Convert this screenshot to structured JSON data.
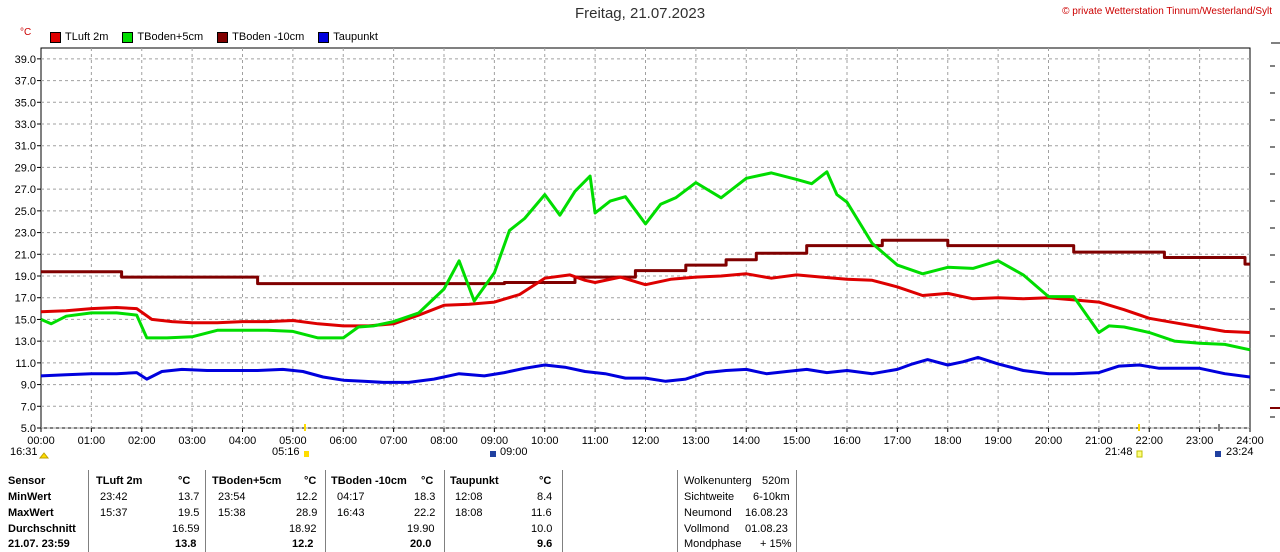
{
  "header": {
    "title": "Freitag, 21.07.2023",
    "copyright": "© private Wetterstation Tinnum/Westerland/Sylt",
    "unit": "°C"
  },
  "legend": [
    {
      "label": "TLuft 2m",
      "color": "#dd0000"
    },
    {
      "label": "TBoden+5cm",
      "color": "#00dd00"
    },
    {
      "label": "TBoden -10cm",
      "color": "#800000"
    },
    {
      "label": "Taupunkt",
      "color": "#0000dd"
    }
  ],
  "sun": {
    "sunrise_label": "16:31",
    "sunrise_time": "05:16",
    "noon_time": "09:00",
    "sunset_time": "21:48",
    "moon_time": "23:24"
  },
  "chart_data": {
    "type": "line",
    "title": "Freitag, 21.07.2023",
    "ylabel": "°C",
    "ylim": [
      5,
      40
    ],
    "yticks": [
      "5.0",
      "7.0",
      "9.0",
      "11.0",
      "13.0",
      "15.0",
      "17.0",
      "19.0",
      "21.0",
      "23.0",
      "25.0",
      "27.0",
      "29.0",
      "31.0",
      "33.0",
      "35.0",
      "37.0",
      "39.0"
    ],
    "xlim": [
      0,
      24
    ],
    "xticks": [
      "00:00",
      "01:00",
      "02:00",
      "03:00",
      "04:00",
      "05:00",
      "06:00",
      "07:00",
      "08:00",
      "09:00",
      "10:00",
      "11:00",
      "12:00",
      "13:00",
      "14:00",
      "15:00",
      "16:00",
      "17:00",
      "18:00",
      "19:00",
      "20:00",
      "21:00",
      "22:00",
      "23:00",
      "24:00"
    ],
    "grid": true,
    "series": [
      {
        "name": "TLuft 2m",
        "color": "#dd0000",
        "x": [
          0,
          0.5,
          1,
          1.5,
          1.9,
          2.2,
          2.6,
          3,
          3.5,
          4,
          4.5,
          5,
          5.5,
          6,
          6.5,
          7,
          7.5,
          8,
          8.5,
          9,
          9.5,
          10,
          10.5,
          10.8,
          11,
          11.5,
          12,
          12.5,
          13,
          13.5,
          14,
          14.5,
          15,
          15.5,
          16,
          16.5,
          17,
          17.5,
          18,
          18.5,
          19,
          19.5,
          20,
          20.5,
          21,
          21.5,
          22,
          22.5,
          23,
          23.5,
          24
        ],
        "y": [
          15.7,
          15.8,
          16.0,
          16.1,
          16.0,
          15.0,
          14.8,
          14.7,
          14.7,
          14.8,
          14.8,
          14.9,
          14.6,
          14.4,
          14.4,
          14.6,
          15.4,
          16.3,
          16.4,
          16.6,
          17.3,
          18.8,
          19.1,
          18.6,
          18.4,
          18.9,
          18.2,
          18.7,
          18.9,
          19.0,
          19.2,
          18.8,
          19.1,
          18.9,
          18.7,
          18.6,
          18.0,
          17.2,
          17.4,
          16.9,
          17.0,
          16.9,
          17.0,
          16.8,
          16.6,
          15.9,
          15.1,
          14.7,
          14.3,
          13.9,
          13.8
        ]
      },
      {
        "name": "TBoden+5cm",
        "color": "#00dd00",
        "x": [
          0,
          0.2,
          0.5,
          1,
          1.5,
          1.9,
          2.1,
          2.5,
          3,
          3.5,
          4,
          4.5,
          5,
          5.5,
          6,
          6.3,
          6.6,
          7,
          7.5,
          8,
          8.3,
          8.6,
          9,
          9.3,
          9.6,
          10,
          10.3,
          10.6,
          10.9,
          11,
          11.3,
          11.6,
          12,
          12.3,
          12.6,
          13,
          13.5,
          14,
          14.5,
          15,
          15.3,
          15.6,
          15.8,
          16,
          16.5,
          17,
          17.5,
          18,
          18.5,
          19,
          19.5,
          20,
          20.5,
          21,
          21.2,
          21.5,
          22,
          22.5,
          23,
          23.5,
          24
        ],
        "y": [
          15.0,
          14.6,
          15.3,
          15.6,
          15.6,
          15.4,
          13.3,
          13.3,
          13.4,
          14.0,
          14.0,
          14.0,
          13.9,
          13.3,
          13.3,
          14.3,
          14.4,
          14.8,
          15.6,
          17.8,
          20.4,
          16.7,
          19.3,
          23.2,
          24.3,
          26.5,
          24.6,
          26.8,
          28.2,
          24.8,
          25.9,
          26.3,
          23.8,
          25.6,
          26.2,
          27.6,
          26.2,
          28.0,
          28.5,
          27.9,
          27.5,
          28.6,
          26.5,
          25.8,
          22.0,
          20.0,
          19.2,
          19.8,
          19.7,
          20.4,
          19.1,
          17.1,
          17.1,
          13.8,
          14.4,
          14.3,
          13.8,
          13.0,
          12.8,
          12.7,
          12.2
        ]
      },
      {
        "name": "TBoden -10cm",
        "color": "#800000",
        "x": [
          0,
          1.6,
          1.6,
          4.3,
          4.3,
          9.2,
          9.2,
          10.6,
          10.6,
          11.8,
          11.8,
          12.8,
          12.8,
          13.6,
          13.6,
          14.2,
          14.2,
          15.2,
          15.2,
          16.7,
          16.7,
          18.0,
          18.0,
          20.5,
          20.5,
          22.3,
          22.3,
          23.9,
          23.9,
          24
        ],
        "y": [
          19.4,
          19.4,
          18.9,
          18.9,
          18.3,
          18.3,
          18.4,
          18.4,
          18.9,
          18.9,
          19.5,
          19.5,
          20.0,
          20.0,
          20.5,
          20.5,
          21.1,
          21.1,
          21.8,
          21.8,
          22.3,
          22.3,
          21.8,
          21.8,
          21.2,
          21.2,
          20.7,
          20.7,
          20.1,
          20.1
        ]
      },
      {
        "name": "Taupunkt",
        "color": "#0000dd",
        "x": [
          0,
          0.5,
          1,
          1.5,
          1.9,
          2.1,
          2.4,
          2.8,
          3.3,
          3.8,
          4.3,
          4.8,
          5.2,
          5.6,
          6,
          6.4,
          6.8,
          7.3,
          7.8,
          8.3,
          8.8,
          9.2,
          9.6,
          10,
          10.4,
          10.8,
          11.2,
          11.6,
          12,
          12.4,
          12.8,
          13.2,
          13.6,
          14,
          14.4,
          14.8,
          15.2,
          15.6,
          16,
          16.5,
          17,
          17.3,
          17.6,
          18,
          18.3,
          18.6,
          19,
          19.5,
          20,
          20.5,
          21,
          21.4,
          21.8,
          22.2,
          22.6,
          23,
          23.5,
          24
        ],
        "y": [
          9.8,
          9.9,
          10.0,
          10.0,
          10.1,
          9.5,
          10.2,
          10.4,
          10.3,
          10.3,
          10.3,
          10.4,
          10.2,
          9.7,
          9.4,
          9.3,
          9.2,
          9.2,
          9.5,
          10.0,
          9.8,
          10.1,
          10.5,
          10.8,
          10.6,
          10.2,
          10.0,
          9.6,
          9.6,
          9.3,
          9.5,
          10.1,
          10.3,
          10.4,
          10.0,
          10.2,
          10.4,
          10.1,
          10.3,
          10.0,
          10.4,
          10.9,
          11.3,
          10.8,
          11.1,
          11.5,
          10.9,
          10.3,
          10.0,
          10.0,
          10.1,
          10.7,
          10.8,
          10.5,
          10.5,
          10.5,
          10.0,
          9.7
        ]
      }
    ]
  },
  "stats": {
    "sensor_header": "Sensor",
    "row_labels": [
      "MinWert",
      "MaxWert",
      "Durchschnitt",
      "21.07. 23:59"
    ],
    "columns": [
      {
        "name": "TLuft 2m",
        "unit": "°C",
        "min_time": "23:42",
        "min": "13.7",
        "max_time": "15:37",
        "max": "19.5",
        "avg": "16.59",
        "last": "13.8"
      },
      {
        "name": "TBoden+5cm",
        "unit": "°C",
        "min_time": "23:54",
        "min": "12.2",
        "max_time": "15:38",
        "max": "28.9",
        "avg": "18.92",
        "last": "12.2"
      },
      {
        "name": "TBoden -10cm",
        "unit": "°C",
        "min_time": "04:17",
        "min": "18.3",
        "max_time": "16:43",
        "max": "22.2",
        "avg": "19.90",
        "last": "20.0"
      },
      {
        "name": "Taupunkt",
        "unit": "°C",
        "min_time": "12:08",
        "min": "8.4",
        "max_time": "18:08",
        "max": "11.6",
        "avg": "10.0",
        "last": "9.6"
      }
    ],
    "info": [
      {
        "label": "Wolkenunterg",
        "value": "520m"
      },
      {
        "label": "Sichtweite",
        "value": "6-10km"
      },
      {
        "label": "Neumond",
        "value": "16.08.23"
      },
      {
        "label": "Vollmond",
        "value": "01.08.23"
      },
      {
        "label": "Mondphase",
        "value": "+ 15%"
      }
    ]
  }
}
